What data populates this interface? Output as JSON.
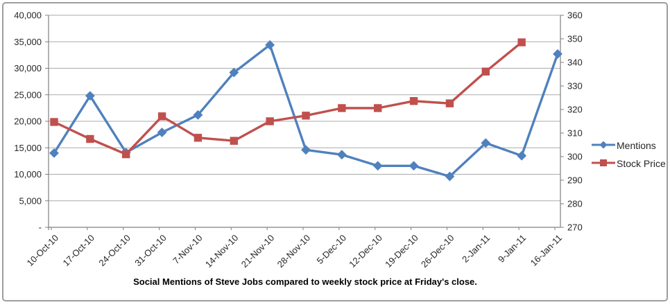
{
  "chart_data": {
    "type": "line",
    "title": "Social Mentions of Steve Jobs compared to weekly stock price at Friday's close.",
    "categories": [
      "10-Oct-10",
      "17-Oct-10",
      "24-Oct-10",
      "31-Oct-10",
      "7-Nov-10",
      "14-Nov-10",
      "21-Nov-10",
      "28-Nov-10",
      "5-Dec-10",
      "12-Dec-10",
      "19-Dec-10",
      "26-Dec-10",
      "2-Jan-11",
      "9-Jan-11",
      "16-Jan-11"
    ],
    "series": [
      {
        "name": "Mentions",
        "axis": "left",
        "color": "#4F81BD",
        "marker": "diamond",
        "values": [
          14000,
          24800,
          14100,
          17900,
          21200,
          29200,
          34400,
          14600,
          13700,
          11600,
          11600,
          9600,
          15900,
          13500,
          32700
        ]
      },
      {
        "name": "Stock Price",
        "axis": "right",
        "color": "#C0504D",
        "marker": "square",
        "values": [
          314.7,
          307.5,
          301.0,
          317.1,
          308.0,
          306.7,
          315.0,
          317.4,
          320.6,
          320.6,
          323.6,
          322.6,
          336.1,
          348.5,
          null
        ]
      }
    ],
    "axes": {
      "left": {
        "min": 0,
        "max": 40000,
        "step": 5000,
        "tick_labels": [
          "40,000",
          "35,000",
          "30,000",
          "25,000",
          "20,000",
          "15,000",
          "10,000",
          "5,000",
          "-"
        ]
      },
      "right": {
        "min": 270,
        "max": 360,
        "step": 10,
        "tick_labels": [
          "360",
          "350",
          "340",
          "330",
          "320",
          "310",
          "300",
          "290",
          "280",
          "270"
        ]
      }
    },
    "grid": true,
    "legend_position": "right"
  },
  "colors": {
    "grid": "#aaaaaa",
    "axis": "#7f7f7f",
    "tick_text": "#262626",
    "frame_border": "#9d9d9d",
    "background": "#ffffff"
  }
}
